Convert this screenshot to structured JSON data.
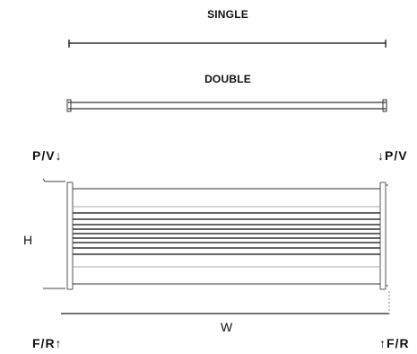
{
  "views": {
    "single_label": "SINGLE",
    "double_label": "DOUBLE"
  },
  "ports": {
    "top_left": "P/V↓",
    "top_right": "↓P/V",
    "bottom_left": "F/R↑",
    "bottom_right": "↑F/R"
  },
  "dimensions": {
    "height_label": "H",
    "width_label": "W"
  },
  "colors": {
    "line": "#333333",
    "tube": "#555555",
    "faint": "#aaaaaa"
  }
}
